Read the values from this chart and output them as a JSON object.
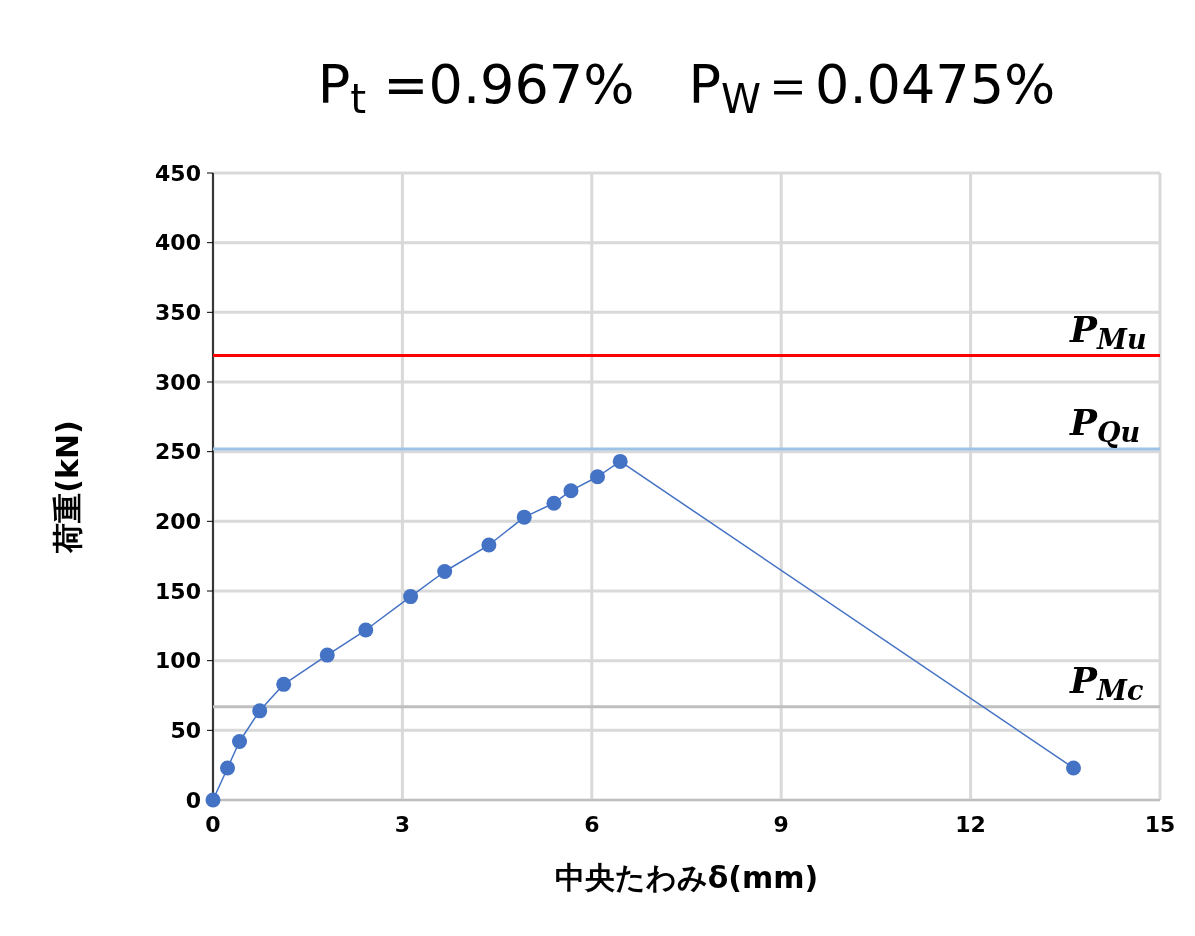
{
  "chart_data": {
    "type": "line",
    "title": "P$_{t}$ =0.967%　P$_{W}$＝0.0475%",
    "xlabel": "中央たわみδ(mm)",
    "ylabel": "荷重(kN)",
    "x": [
      0,
      0.23,
      0.42,
      0.74,
      1.12,
      1.81,
      2.42,
      3.13,
      3.67,
      4.37,
      4.93,
      5.4,
      5.67,
      6.09,
      6.45,
      13.63
    ],
    "series": [
      {
        "color": "#4472c4",
        "values": [
          0,
          23,
          42,
          64,
          83,
          104,
          122,
          146,
          164,
          183,
          203,
          213,
          222,
          232,
          243,
          23
        ]
      }
    ],
    "xlim": [
      0,
      15
    ],
    "xticks": [
      0,
      3,
      6,
      9,
      12,
      15
    ],
    "ylim": [
      0,
      450
    ],
    "yticks": [
      0,
      50,
      100,
      150,
      200,
      250,
      300,
      350,
      400,
      450
    ],
    "grid": true,
    "marker": "circle",
    "line_style": "solid",
    "ref_lines": [
      {
        "axis": "y",
        "value": 319,
        "label": "P$_{Mu}$",
        "color": "#ff0000"
      },
      {
        "axis": "y",
        "value": 252,
        "label": "P$_{Qu}$",
        "color": "#9dc3e6"
      },
      {
        "axis": "y",
        "value": 67,
        "label": "P$_{Mc}$",
        "color": "#bfbfbf"
      }
    ]
  }
}
